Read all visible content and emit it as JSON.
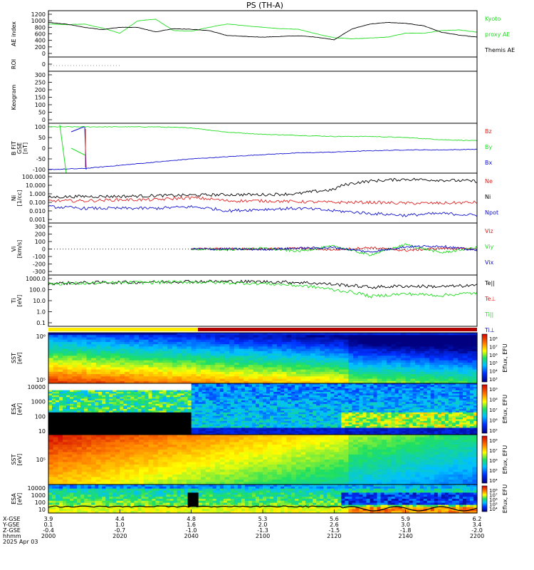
{
  "title": "PS (TH-A)",
  "colors": {
    "black": "#000000",
    "red": "#e02020",
    "green": "#22dd22",
    "blue": "#1010d0",
    "orange": "#ff7a00",
    "yellow": "#ffee00",
    "darkred": "#b00000"
  },
  "panels": [
    {
      "key": "ae",
      "ylabel": [
        "AE index"
      ],
      "yticks": [
        "1200",
        "1000",
        "800",
        "600",
        "400",
        "200",
        "0"
      ],
      "legend": [
        {
          "text": "Kyoto",
          "color": "#22dd22"
        },
        {
          "text": "proxy AE",
          "color": "#22dd22"
        },
        {
          "text": "Themis AE",
          "color": "#000000"
        }
      ]
    },
    {
      "key": "roi",
      "ylabel": [
        "ROI"
      ],
      "yticks": [
        "0"
      ],
      "legend": []
    },
    {
      "key": "keo",
      "ylabel": [
        "Keogram"
      ],
      "yticks": [
        "300",
        "250",
        "200",
        "150",
        "100",
        "50",
        "0"
      ],
      "legend": []
    },
    {
      "key": "bfgm",
      "ylabel": [
        "B FIT",
        "GSE",
        "[nT]"
      ],
      "yticks": [
        "100",
        "50",
        "0",
        "-50",
        "-100"
      ],
      "legend": [
        {
          "text": "Bz",
          "color": "#e02020"
        },
        {
          "text": "By",
          "color": "#22dd22"
        },
        {
          "text": "Bx",
          "color": "#1010d0"
        }
      ]
    },
    {
      "key": "ni",
      "ylabel": [
        "Ni",
        "[1/cc]"
      ],
      "yticks": [
        "100.000",
        "10.000",
        "1.000",
        "0.100",
        "0.010",
        "0.001"
      ],
      "legend": [
        {
          "text": "Ne",
          "color": "#e02020"
        },
        {
          "text": "Ni",
          "color": "#000000"
        },
        {
          "text": "Npot",
          "color": "#1010d0"
        }
      ]
    },
    {
      "key": "vi",
      "ylabel": [
        "Vi",
        "[km/s]"
      ],
      "yticks": [
        "300",
        "200",
        "100",
        "0",
        "-100",
        "-200",
        "-300"
      ],
      "legend": [
        {
          "text": "Viz",
          "color": "#e02020"
        },
        {
          "text": "Viy",
          "color": "#22dd22"
        },
        {
          "text": "Vix",
          "color": "#1010d0"
        }
      ]
    },
    {
      "key": "ti",
      "ylabel": [
        "Ti",
        "[eV]"
      ],
      "yticks": [
        "1000.0",
        "100.0",
        "10.0",
        "1.0",
        "0.1"
      ],
      "legend": [
        {
          "text": "Te||",
          "color": "#000000"
        },
        {
          "text": "Te⊥",
          "color": "#e02020"
        },
        {
          "text": "Ti||",
          "color": "#22dd22"
        },
        {
          "text": "Ti⊥",
          "color": "#1010d0"
        }
      ]
    },
    {
      "key": "sste",
      "ylabel": [
        "SST",
        "[eV]"
      ],
      "yticks": [
        "10⁶",
        "10⁵"
      ],
      "legend": []
    },
    {
      "key": "esae",
      "ylabel": [
        "ESA",
        "[eV]"
      ],
      "yticks": [
        "10000",
        "1000",
        "100",
        "10"
      ],
      "legend": []
    },
    {
      "key": "ssti",
      "ylabel": [
        "SST",
        "[eV]"
      ],
      "yticks": [
        "10⁵"
      ],
      "legend": []
    },
    {
      "key": "esai",
      "ylabel": [
        "ESA",
        "[eV]"
      ],
      "yticks": [
        "10000",
        "1000",
        "100",
        "10"
      ],
      "legend": []
    }
  ],
  "colorbars": [
    {
      "label": "Eflux, EFU",
      "ticks": [
        "10⁸",
        "10⁷",
        "10⁶",
        "10⁵",
        "10⁴",
        "10³"
      ]
    },
    {
      "label": "Eflux, EFU",
      "ticks": [
        "10⁹",
        "10⁸",
        "10⁷",
        "10⁶",
        "10⁵"
      ]
    },
    {
      "label": "Eflux, EFU",
      "ticks": [
        "10⁸",
        "10⁷",
        "10⁶",
        "10⁵",
        "10⁴"
      ]
    },
    {
      "label": "Eflux, EFU",
      "ticks": [
        "10⁸",
        "10⁷",
        "10⁶",
        "10⁵",
        "10⁴"
      ]
    }
  ],
  "xaxis": {
    "row_labels": [
      "X-GSE",
      "Y-GSE",
      "Z-GSE",
      "hhmm",
      "2025 Apr 03"
    ],
    "ticks": [
      {
        "x": "3.9",
        "y": "0.1",
        "z": "-0.4",
        "t": "2000"
      },
      {
        "x": "4.4",
        "y": "1.0",
        "z": "-0.7",
        "t": "2020"
      },
      {
        "x": "4.8",
        "y": "1.6",
        "z": "-1.0",
        "t": "2040"
      },
      {
        "x": "5.3",
        "y": "2.0",
        "z": "-1.3",
        "t": "2100"
      },
      {
        "x": "5.6",
        "y": "2.6",
        "z": "-1.5",
        "t": "2120"
      },
      {
        "x": "5.9",
        "y": "3.0",
        "z": "-1.8",
        "t": "2140"
      },
      {
        "x": "6.2",
        "y": "3.4",
        "z": "-2.0",
        "t": "2200"
      }
    ]
  },
  "chart_data": [
    {
      "type": "line",
      "name": "AE index",
      "x": [
        "2000",
        "2005",
        "2010",
        "2015",
        "2020",
        "2025",
        "2030",
        "2035",
        "2040",
        "2045",
        "2050",
        "2055",
        "2100",
        "2105",
        "2110",
        "2115",
        "2120",
        "2125",
        "2130",
        "2135",
        "2140",
        "2145",
        "2150",
        "2155",
        "2200"
      ],
      "ylim": [
        0,
        1200
      ],
      "series": [
        {
          "name": "Kyoto proxy AE",
          "values": [
            900,
            880,
            900,
            780,
            620,
            1000,
            1050,
            700,
            680,
            800,
            900,
            850,
            800,
            760,
            740,
            600,
            480,
            450,
            470,
            500,
            620,
            620,
            700,
            720,
            650
          ]
        },
        {
          "name": "Themis AE",
          "values": [
            950,
            900,
            800,
            730,
            800,
            800,
            660,
            760,
            740,
            700,
            550,
            520,
            500,
            520,
            540,
            500,
            420,
            750,
            900,
            950,
            920,
            850,
            650,
            560,
            500
          ]
        }
      ]
    },
    {
      "type": "line",
      "name": "B FIT GSE [nT]",
      "x": [
        "2000",
        "2010",
        "2020",
        "2030",
        "2040",
        "2050",
        "2100",
        "2110",
        "2120",
        "2130",
        "2140",
        "2150",
        "2200"
      ],
      "ylim": [
        -100,
        100
      ],
      "series": [
        {
          "name": "By",
          "values": [
            100,
            100,
            100,
            100,
            95,
            75,
            65,
            60,
            55,
            55,
            50,
            40,
            35
          ]
        },
        {
          "name": "Bx",
          "values": [
            -100,
            -95,
            -80,
            -65,
            -50,
            -40,
            -30,
            -22,
            -18,
            -12,
            -8,
            -8,
            -5
          ]
        }
      ]
    },
    {
      "type": "line",
      "name": "Ni [1/cc]",
      "x": [
        "2000",
        "2010",
        "2020",
        "2030",
        "2040",
        "2050",
        "2100",
        "2110",
        "2120",
        "2130",
        "2140",
        "2150",
        "2200"
      ],
      "ylim": [
        0.001,
        100
      ],
      "yscale": "log",
      "series": [
        {
          "name": "Ni",
          "values": [
            0.4,
            0.5,
            0.5,
            0.6,
            0.7,
            0.8,
            0.8,
            1.0,
            3.0,
            30,
            50,
            40,
            30
          ]
        },
        {
          "name": "Ne",
          "values": [
            0.15,
            0.15,
            0.2,
            0.2,
            0.35,
            0.15,
            0.15,
            0.12,
            0.1,
            0.1,
            0.08,
            0.08,
            0.1
          ]
        },
        {
          "name": "Npot",
          "values": [
            0.03,
            0.02,
            0.02,
            0.02,
            0.03,
            0.01,
            0.015,
            0.02,
            0.01,
            0.005,
            0.003,
            0.005,
            0.003
          ]
        }
      ]
    },
    {
      "type": "line",
      "name": "Vi [km/s]",
      "x": [
        "2040",
        "2050",
        "2100",
        "2110",
        "2120",
        "2130",
        "2140",
        "2150",
        "2200"
      ],
      "ylim": [
        -300,
        300
      ],
      "series": [
        {
          "name": "Viz",
          "values": [
            0,
            5,
            0,
            10,
            -10,
            20,
            -20,
            10,
            0
          ]
        },
        {
          "name": "Viy",
          "values": [
            0,
            -10,
            10,
            -30,
            40,
            -80,
            60,
            -50,
            20
          ]
        },
        {
          "name": "Vix",
          "values": [
            0,
            0,
            -5,
            10,
            20,
            -40,
            30,
            40,
            -20
          ]
        }
      ]
    },
    {
      "type": "line",
      "name": "Ti [eV]",
      "x": [
        "2000",
        "2010",
        "2020",
        "2030",
        "2040",
        "2050",
        "2100",
        "2110",
        "2120",
        "2130",
        "2140",
        "2150",
        "2200"
      ],
      "ylim": [
        0.1,
        5000
      ],
      "yscale": "log",
      "series": [
        {
          "name": "Te||",
          "values": [
            1500,
            1800,
            2000,
            2200,
            2500,
            2400,
            2300,
            2000,
            1200,
            600,
            800,
            700,
            900
          ]
        },
        {
          "name": "Ti||",
          "values": [
            1400,
            1600,
            1800,
            2000,
            2200,
            1800,
            1500,
            900,
            300,
            60,
            120,
            80,
            150
          ]
        }
      ]
    },
    {
      "type": "heatmap",
      "name": "SST electrons",
      "ylabel": "[eV]"
    },
    {
      "type": "heatmap",
      "name": "ESA electrons",
      "ylabel": "[eV]",
      "ylim": [
        10,
        10000
      ]
    },
    {
      "type": "heatmap",
      "name": "SST ions",
      "ylabel": "[eV]"
    },
    {
      "type": "heatmap",
      "name": "ESA ions",
      "ylabel": "[eV]",
      "ylim": [
        10,
        10000
      ]
    }
  ]
}
